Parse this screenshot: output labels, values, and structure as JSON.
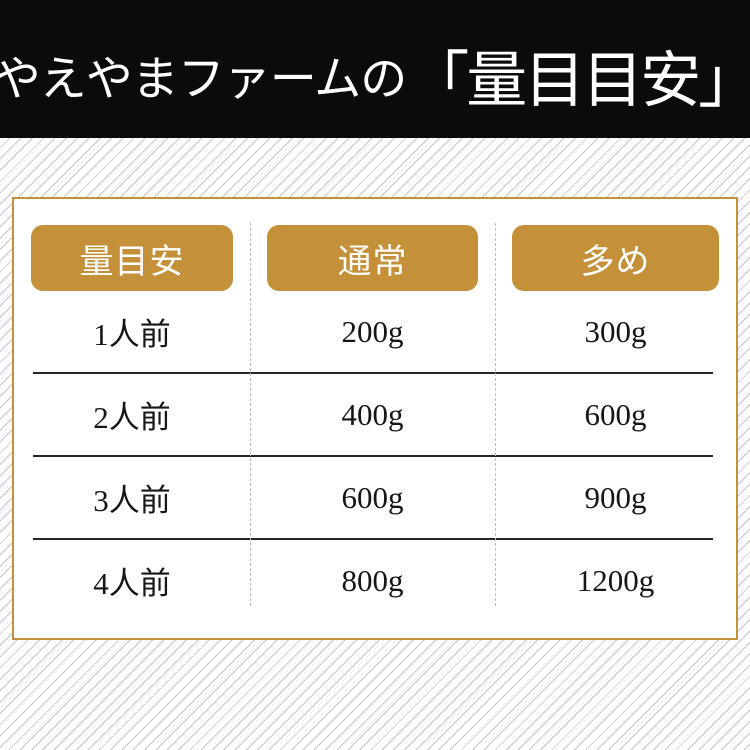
{
  "colors": {
    "gold": "#c4913a",
    "banner_bg": "#0b0b0b",
    "divider_dark": "#26262a",
    "divider_light": "#bcbcc2"
  },
  "banner": {
    "title_prefix": "やえやまファームの",
    "title_bracketed": "「量目目安」"
  },
  "chart_data": {
    "type": "table",
    "title": "やえやまファームの「量目目安」",
    "columns": [
      "量目安",
      "通常",
      "多め"
    ],
    "rows": [
      [
        "1人前",
        "200g",
        "300g"
      ],
      [
        "2人前",
        "400g",
        "600g"
      ],
      [
        "3人前",
        "600g",
        "900g"
      ],
      [
        "4人前",
        "800g",
        "1200g"
      ]
    ]
  }
}
